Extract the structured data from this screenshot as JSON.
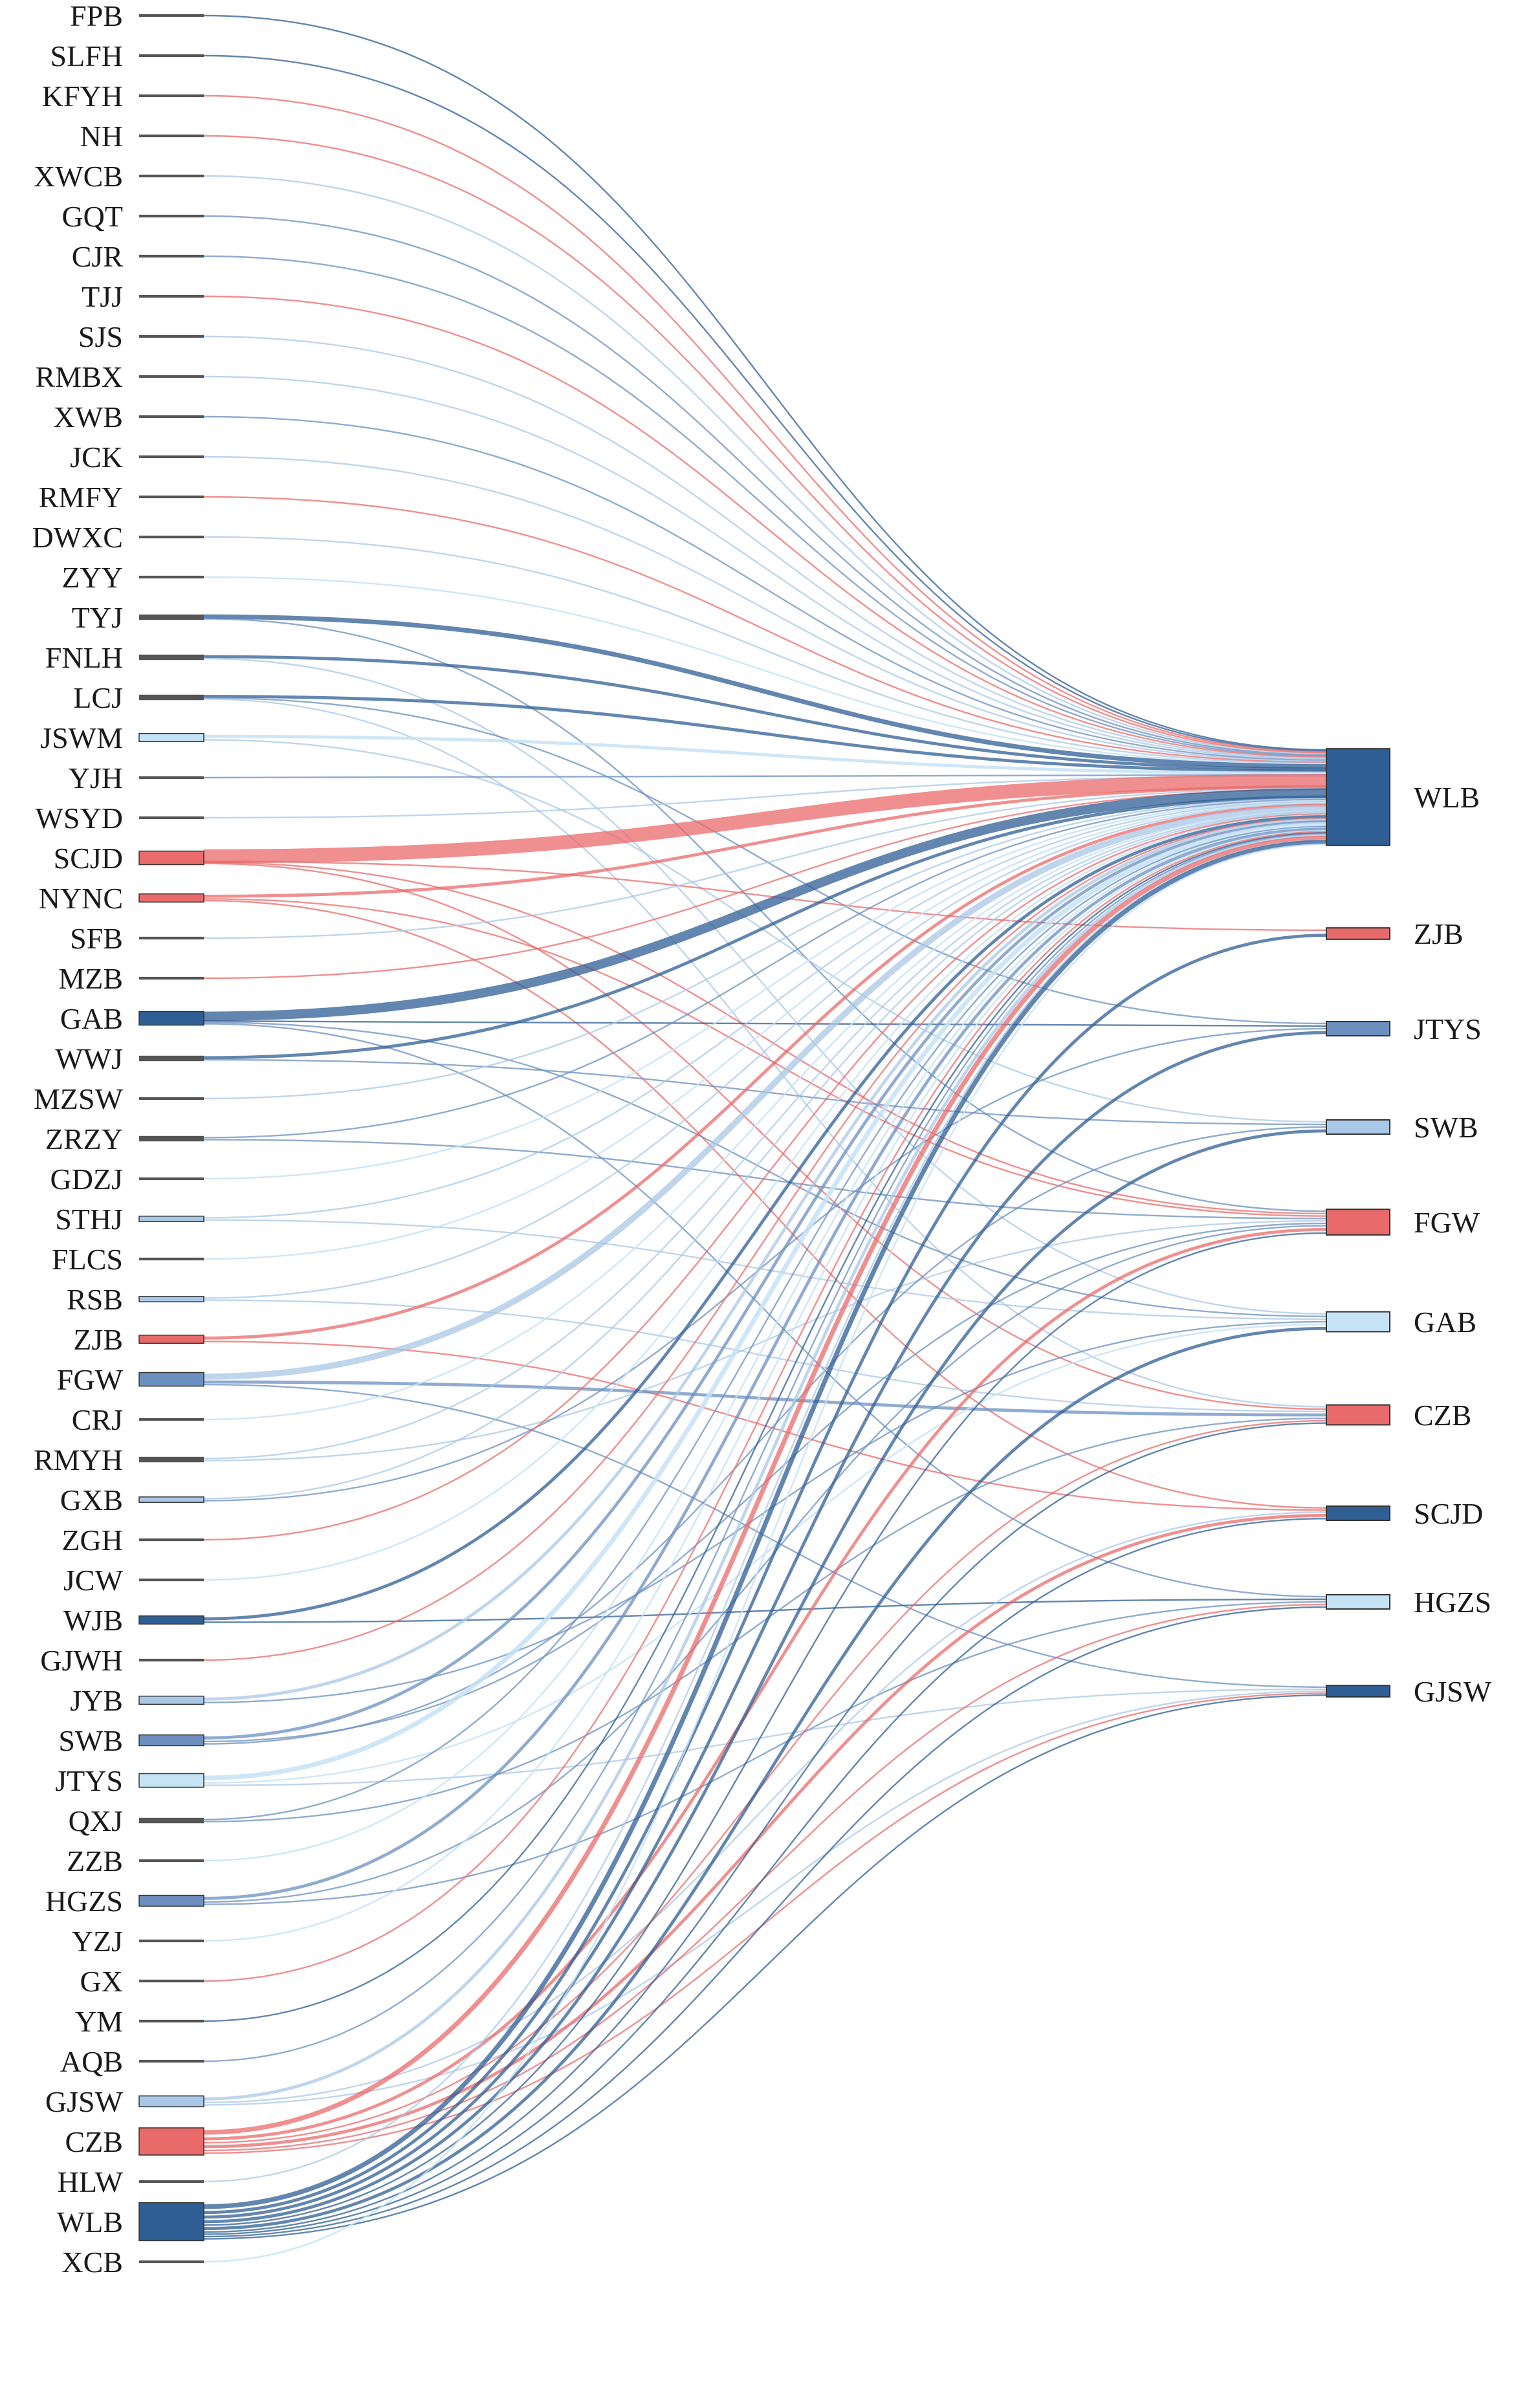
{
  "colors": {
    "dark": "#2e5e94",
    "mid": "#6b8fbf",
    "light": "#a9c7e6",
    "pale": "#c6e2f5",
    "red": "#e96a6a",
    "tick": "#555555"
  },
  "left_nodes": [
    {
      "label": "FPB",
      "size": 1,
      "color": "tick"
    },
    {
      "label": "SLFH",
      "size": 1,
      "color": "tick"
    },
    {
      "label": "KFYH",
      "size": 1,
      "color": "tick"
    },
    {
      "label": "NH",
      "size": 1,
      "color": "tick"
    },
    {
      "label": "XWCB",
      "size": 1,
      "color": "tick"
    },
    {
      "label": "GQT",
      "size": 1,
      "color": "tick"
    },
    {
      "label": "CJR",
      "size": 1,
      "color": "tick"
    },
    {
      "label": "TJJ",
      "size": 1,
      "color": "tick"
    },
    {
      "label": "SJS",
      "size": 1,
      "color": "tick"
    },
    {
      "label": "RMBX",
      "size": 1,
      "color": "tick"
    },
    {
      "label": "XWB",
      "size": 1,
      "color": "tick"
    },
    {
      "label": "JCK",
      "size": 1,
      "color": "tick"
    },
    {
      "label": "RMFY",
      "size": 1,
      "color": "tick"
    },
    {
      "label": "DWXC",
      "size": 1,
      "color": "tick"
    },
    {
      "label": "ZYY",
      "size": 1,
      "color": "tick"
    },
    {
      "label": "TYJ",
      "size": 2,
      "color": "tick"
    },
    {
      "label": "FNLH",
      "size": 2,
      "color": "tick"
    },
    {
      "label": "LCJ",
      "size": 2,
      "color": "tick"
    },
    {
      "label": "JSWM",
      "size": 3,
      "color": "pale"
    },
    {
      "label": "YJH",
      "size": 1,
      "color": "tick"
    },
    {
      "label": "WSYD",
      "size": 1,
      "color": "tick"
    },
    {
      "label": "SCJD",
      "size": 5,
      "color": "red"
    },
    {
      "label": "NYNC",
      "size": 3,
      "color": "red"
    },
    {
      "label": "SFB",
      "size": 1,
      "color": "tick"
    },
    {
      "label": "MZB",
      "size": 1,
      "color": "tick"
    },
    {
      "label": "GAB",
      "size": 5,
      "color": "dark"
    },
    {
      "label": "WWJ",
      "size": 2,
      "color": "tick"
    },
    {
      "label": "MZSW",
      "size": 1,
      "color": "tick"
    },
    {
      "label": "ZRZY",
      "size": 2,
      "color": "tick"
    },
    {
      "label": "GDZJ",
      "size": 1,
      "color": "tick"
    },
    {
      "label": "STHJ",
      "size": 2,
      "color": "light"
    },
    {
      "label": "FLCS",
      "size": 1,
      "color": "tick"
    },
    {
      "label": "RSB",
      "size": 2,
      "color": "light"
    },
    {
      "label": "ZJB",
      "size": 3,
      "color": "red"
    },
    {
      "label": "FGW",
      "size": 5,
      "color": "mid"
    },
    {
      "label": "CRJ",
      "size": 1,
      "color": "tick"
    },
    {
      "label": "RMYH",
      "size": 2,
      "color": "tick"
    },
    {
      "label": "GXB",
      "size": 2,
      "color": "light"
    },
    {
      "label": "ZGH",
      "size": 1,
      "color": "tick"
    },
    {
      "label": "JCW",
      "size": 1,
      "color": "tick"
    },
    {
      "label": "WJB",
      "size": 3,
      "color": "dark"
    },
    {
      "label": "GJWH",
      "size": 1,
      "color": "tick"
    },
    {
      "label": "JYB",
      "size": 3,
      "color": "light"
    },
    {
      "label": "SWB",
      "size": 4,
      "color": "mid"
    },
    {
      "label": "JTYS",
      "size": 5,
      "color": "pale"
    },
    {
      "label": "QXJ",
      "size": 2,
      "color": "tick"
    },
    {
      "label": "ZZB",
      "size": 1,
      "color": "tick"
    },
    {
      "label": "HGZS",
      "size": 4,
      "color": "mid"
    },
    {
      "label": "YZJ",
      "size": 1,
      "color": "tick"
    },
    {
      "label": "GX",
      "size": 1,
      "color": "tick"
    },
    {
      "label": "YM",
      "size": 1,
      "color": "tick"
    },
    {
      "label": "AQB",
      "size": 1,
      "color": "tick"
    },
    {
      "label": "GJSW",
      "size": 4,
      "color": "light"
    },
    {
      "label": "CZB",
      "size": 10,
      "color": "red"
    },
    {
      "label": "HLW",
      "size": 1,
      "color": "tick"
    },
    {
      "label": "WLB",
      "size": 14,
      "color": "dark"
    },
    {
      "label": "XCB",
      "size": 1,
      "color": "tick"
    }
  ],
  "right_nodes": [
    {
      "label": "WLB",
      "size": 34,
      "color": "dark"
    },
    {
      "label": "ZJB",
      "size": 4,
      "color": "red"
    },
    {
      "label": "JTYS",
      "size": 5,
      "color": "mid"
    },
    {
      "label": "SWB",
      "size": 5,
      "color": "light"
    },
    {
      "label": "FGW",
      "size": 9,
      "color": "red"
    },
    {
      "label": "GAB",
      "size": 7,
      "color": "pale"
    },
    {
      "label": "CZB",
      "size": 7,
      "color": "red"
    },
    {
      "label": "SCJD",
      "size": 5,
      "color": "dark"
    },
    {
      "label": "HGZS",
      "size": 5,
      "color": "pale"
    },
    {
      "label": "GJSW",
      "size": 4,
      "color": "dark"
    }
  ],
  "flows": [
    {
      "from": "FPB",
      "to": "WLB",
      "value": 1,
      "color": "dark"
    },
    {
      "from": "SLFH",
      "to": "WLB",
      "value": 1,
      "color": "dark"
    },
    {
      "from": "KFYH",
      "to": "WLB",
      "value": 1,
      "color": "red"
    },
    {
      "from": "NH",
      "to": "WLB",
      "value": 1,
      "color": "red"
    },
    {
      "from": "XWCB",
      "to": "WLB",
      "value": 1,
      "color": "light"
    },
    {
      "from": "GQT",
      "to": "WLB",
      "value": 1,
      "color": "mid"
    },
    {
      "from": "CJR",
      "to": "WLB",
      "value": 1,
      "color": "mid"
    },
    {
      "from": "TJJ",
      "to": "WLB",
      "value": 1,
      "color": "red"
    },
    {
      "from": "SJS",
      "to": "WLB",
      "value": 1,
      "color": "light"
    },
    {
      "from": "RMBX",
      "to": "WLB",
      "value": 1,
      "color": "light"
    },
    {
      "from": "XWB",
      "to": "WLB",
      "value": 1,
      "color": "mid"
    },
    {
      "from": "JCK",
      "to": "WLB",
      "value": 1,
      "color": "light"
    },
    {
      "from": "RMFY",
      "to": "WLB",
      "value": 1,
      "color": "red"
    },
    {
      "from": "DWXC",
      "to": "WLB",
      "value": 1,
      "color": "light"
    },
    {
      "from": "ZYY",
      "to": "WLB",
      "value": 1,
      "color": "pale"
    },
    {
      "from": "TYJ",
      "to": "WLB",
      "value": 3,
      "color": "dark"
    },
    {
      "from": "TYJ",
      "to": "FGW",
      "value": 1,
      "color": "mid"
    },
    {
      "from": "FNLH",
      "to": "WLB",
      "value": 2,
      "color": "dark"
    },
    {
      "from": "FNLH",
      "to": "GAB",
      "value": 1,
      "color": "light"
    },
    {
      "from": "LCJ",
      "to": "WLB",
      "value": 2,
      "color": "dark"
    },
    {
      "from": "LCJ",
      "to": "JTYS",
      "value": 1,
      "color": "mid"
    },
    {
      "from": "LCJ",
      "to": "CZB",
      "value": 1,
      "color": "light"
    },
    {
      "from": "JSWM",
      "to": "WLB",
      "value": 2,
      "color": "pale"
    },
    {
      "from": "JSWM",
      "to": "SWB",
      "value": 1,
      "color": "light"
    },
    {
      "from": "YJH",
      "to": "WLB",
      "value": 1,
      "color": "mid"
    },
    {
      "from": "WSYD",
      "to": "WLB",
      "value": 1,
      "color": "light"
    },
    {
      "from": "SCJD",
      "to": "WLB",
      "value": 9,
      "color": "red"
    },
    {
      "from": "SCJD",
      "to": "ZJB",
      "value": 1,
      "color": "red"
    },
    {
      "from": "SCJD",
      "to": "FGW",
      "value": 1,
      "color": "red"
    },
    {
      "from": "SCJD",
      "to": "CZB",
      "value": 1,
      "color": "red"
    },
    {
      "from": "NYNC",
      "to": "WLB",
      "value": 2,
      "color": "red"
    },
    {
      "from": "NYNC",
      "to": "FGW",
      "value": 1,
      "color": "red"
    },
    {
      "from": "NYNC",
      "to": "SCJD",
      "value": 1,
      "color": "red"
    },
    {
      "from": "SFB",
      "to": "WLB",
      "value": 1,
      "color": "light"
    },
    {
      "from": "MZB",
      "to": "WLB",
      "value": 1,
      "color": "red"
    },
    {
      "from": "GAB",
      "to": "WLB",
      "value": 6,
      "color": "dark"
    },
    {
      "from": "GAB",
      "to": "JTYS",
      "value": 1,
      "color": "dark"
    },
    {
      "from": "GAB",
      "to": "GAB",
      "value": 1,
      "color": "mid"
    },
    {
      "from": "GAB",
      "to": "HGZS",
      "value": 1,
      "color": "mid"
    },
    {
      "from": "WWJ",
      "to": "WLB",
      "value": 2,
      "color": "dark"
    },
    {
      "from": "WWJ",
      "to": "SWB",
      "value": 1,
      "color": "mid"
    },
    {
      "from": "MZSW",
      "to": "WLB",
      "value": 1,
      "color": "light"
    },
    {
      "from": "ZRZY",
      "to": "WLB",
      "value": 1,
      "color": "mid"
    },
    {
      "from": "ZRZY",
      "to": "FGW",
      "value": 1,
      "color": "mid"
    },
    {
      "from": "GDZJ",
      "to": "WLB",
      "value": 1,
      "color": "pale"
    },
    {
      "from": "STHJ",
      "to": "WLB",
      "value": 1,
      "color": "light"
    },
    {
      "from": "STHJ",
      "to": "GAB",
      "value": 1,
      "color": "light"
    },
    {
      "from": "FLCS",
      "to": "WLB",
      "value": 1,
      "color": "pale"
    },
    {
      "from": "RSB",
      "to": "WLB",
      "value": 1,
      "color": "light"
    },
    {
      "from": "RSB",
      "to": "CZB",
      "value": 1,
      "color": "light"
    },
    {
      "from": "ZJB",
      "to": "WLB",
      "value": 2,
      "color": "red"
    },
    {
      "from": "ZJB",
      "to": "SCJD",
      "value": 1,
      "color": "red"
    },
    {
      "from": "FGW",
      "to": "WLB",
      "value": 4,
      "color": "light"
    },
    {
      "from": "FGW",
      "to": "CZB",
      "value": 2,
      "color": "mid"
    },
    {
      "from": "FGW",
      "to": "GJSW",
      "value": 1,
      "color": "mid"
    },
    {
      "from": "CRJ",
      "to": "WLB",
      "value": 1,
      "color": "pale"
    },
    {
      "from": "RMYH",
      "to": "WLB",
      "value": 1,
      "color": "light"
    },
    {
      "from": "RMYH",
      "to": "FGW",
      "value": 1,
      "color": "light"
    },
    {
      "from": "GXB",
      "to": "WLB",
      "value": 1,
      "color": "light"
    },
    {
      "from": "GXB",
      "to": "JTYS",
      "value": 1,
      "color": "mid"
    },
    {
      "from": "ZGH",
      "to": "WLB",
      "value": 1,
      "color": "red"
    },
    {
      "from": "JCW",
      "to": "WLB",
      "value": 1,
      "color": "pale"
    },
    {
      "from": "WJB",
      "to": "WLB",
      "value": 2,
      "color": "dark"
    },
    {
      "from": "WJB",
      "to": "HGZS",
      "value": 1,
      "color": "dark"
    },
    {
      "from": "GJWH",
      "to": "WLB",
      "value": 1,
      "color": "red"
    },
    {
      "from": "JYB",
      "to": "WLB",
      "value": 2,
      "color": "light"
    },
    {
      "from": "JYB",
      "to": "GAB",
      "value": 1,
      "color": "mid"
    },
    {
      "from": "SWB",
      "to": "WLB",
      "value": 2,
      "color": "mid"
    },
    {
      "from": "SWB",
      "to": "FGW",
      "value": 1,
      "color": "mid"
    },
    {
      "from": "SWB",
      "to": "SWB",
      "value": 1,
      "color": "mid"
    },
    {
      "from": "JTYS",
      "to": "WLB",
      "value": 3,
      "color": "pale"
    },
    {
      "from": "JTYS",
      "to": "GAB",
      "value": 1,
      "color": "pale"
    },
    {
      "from": "JTYS",
      "to": "GJSW",
      "value": 1,
      "color": "light"
    },
    {
      "from": "QXJ",
      "to": "WLB",
      "value": 1,
      "color": "mid"
    },
    {
      "from": "QXJ",
      "to": "CZB",
      "value": 1,
      "color": "mid"
    },
    {
      "from": "ZZB",
      "to": "WLB",
      "value": 1,
      "color": "pale"
    },
    {
      "from": "HGZS",
      "to": "WLB",
      "value": 2,
      "color": "mid"
    },
    {
      "from": "HGZS",
      "to": "FGW",
      "value": 1,
      "color": "mid"
    },
    {
      "from": "HGZS",
      "to": "HGZS",
      "value": 1,
      "color": "mid"
    },
    {
      "from": "YZJ",
      "to": "WLB",
      "value": 1,
      "color": "pale"
    },
    {
      "from": "GX",
      "to": "WLB",
      "value": 1,
      "color": "red"
    },
    {
      "from": "YM",
      "to": "WLB",
      "value": 1,
      "color": "dark"
    },
    {
      "from": "AQB",
      "to": "WLB",
      "value": 1,
      "color": "mid"
    },
    {
      "from": "GJSW",
      "to": "WLB",
      "value": 2,
      "color": "light"
    },
    {
      "from": "GJSW",
      "to": "SCJD",
      "value": 1,
      "color": "light"
    },
    {
      "from": "GJSW",
      "to": "GJSW",
      "value": 1,
      "color": "light"
    },
    {
      "from": "CZB",
      "to": "WLB",
      "value": 3,
      "color": "red"
    },
    {
      "from": "CZB",
      "to": "FGW",
      "value": 2,
      "color": "red"
    },
    {
      "from": "CZB",
      "to": "CZB",
      "value": 1,
      "color": "red"
    },
    {
      "from": "CZB",
      "to": "SCJD",
      "value": 2,
      "color": "red"
    },
    {
      "from": "CZB",
      "to": "HGZS",
      "value": 1,
      "color": "red"
    },
    {
      "from": "CZB",
      "to": "GJSW",
      "value": 1,
      "color": "red"
    },
    {
      "from": "HLW",
      "to": "WLB",
      "value": 1,
      "color": "light"
    },
    {
      "from": "WLB",
      "to": "WLB",
      "value": 3,
      "color": "dark"
    },
    {
      "from": "WLB",
      "to": "ZJB",
      "value": 2,
      "color": "dark"
    },
    {
      "from": "WLB",
      "to": "JTYS",
      "value": 2,
      "color": "dark"
    },
    {
      "from": "WLB",
      "to": "SWB",
      "value": 2,
      "color": "dark"
    },
    {
      "from": "WLB",
      "to": "FGW",
      "value": 1,
      "color": "dark"
    },
    {
      "from": "WLB",
      "to": "GAB",
      "value": 2,
      "color": "dark"
    },
    {
      "from": "WLB",
      "to": "CZB",
      "value": 1,
      "color": "dark"
    },
    {
      "from": "WLB",
      "to": "SCJD",
      "value": 1,
      "color": "dark"
    },
    {
      "from": "WLB",
      "to": "HGZS",
      "value": 1,
      "color": "dark"
    },
    {
      "from": "WLB",
      "to": "GJSW",
      "value": 1,
      "color": "dark"
    },
    {
      "from": "XCB",
      "to": "WLB",
      "value": 1,
      "color": "pale"
    }
  ]
}
